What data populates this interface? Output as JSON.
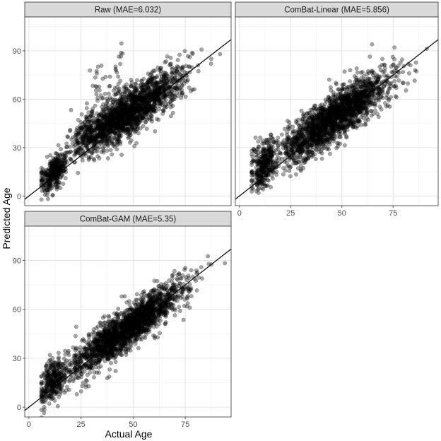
{
  "chart_data": {
    "type": "scatter",
    "layout": "facet_wrap",
    "xlabel": "Actual Age",
    "ylabel": "Predicted Age",
    "xlim": [
      -2,
      97
    ],
    "ylim": [
      -6,
      111
    ],
    "xticks": [
      0,
      25,
      50,
      75
    ],
    "yticks": [
      0,
      30,
      60,
      90
    ],
    "grid": true,
    "point_color": "#000000",
    "point_alpha": 0.35,
    "reference_line": {
      "slope": 1,
      "intercept": 0,
      "color": "#000000"
    },
    "panels": [
      {
        "title": "Raw (MAE=6.032)",
        "mae": 6.032,
        "xticks_shown": false,
        "yticks_shown": true
      },
      {
        "title": "ComBat-Linear (MAE=5.856)",
        "mae": 5.856,
        "xticks_shown": true,
        "yticks_shown": false
      },
      {
        "title": "ComBat-GAM (MAE=5.35)",
        "mae": 5.35,
        "xticks_shown": true,
        "yticks_shown": true
      }
    ]
  }
}
